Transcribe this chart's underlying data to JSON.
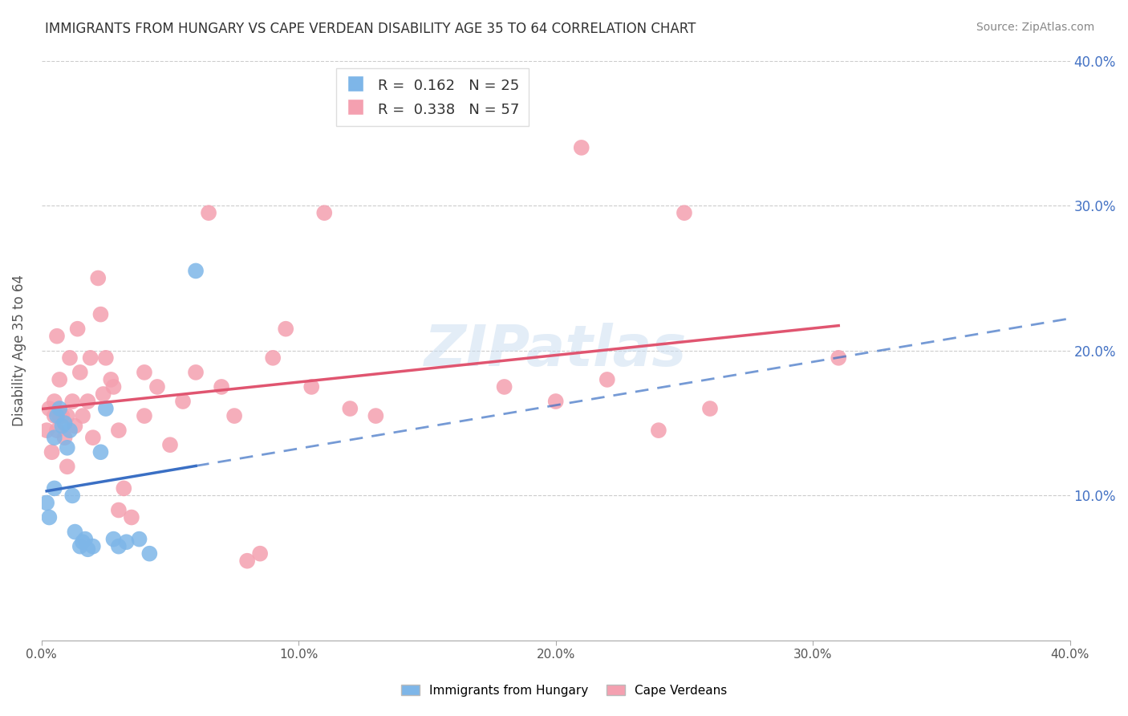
{
  "title": "IMMIGRANTS FROM HUNGARY VS CAPE VERDEAN DISABILITY AGE 35 TO 64 CORRELATION CHART",
  "source": "Source: ZipAtlas.com",
  "xlabel": "",
  "ylabel": "Disability Age 35 to 64",
  "xlim": [
    0.0,
    0.4
  ],
  "ylim": [
    0.0,
    0.4
  ],
  "xticks": [
    0.0,
    0.1,
    0.2,
    0.3,
    0.4
  ],
  "yticks": [
    0.1,
    0.2,
    0.3,
    0.4
  ],
  "ytick_labels_right": [
    "10.0%",
    "20.0%",
    "30.0%",
    "40.0%"
  ],
  "xtick_labels": [
    "0.0%",
    "10.0%",
    "20.0%",
    "30.0%",
    "40.0%"
  ],
  "hungary_color": "#7EB6E8",
  "cape_verde_color": "#F4A0B0",
  "hungary_line_color": "#3A6FC4",
  "cape_verde_line_color": "#E05570",
  "R_hungary": 0.162,
  "N_hungary": 25,
  "R_cape_verde": 0.338,
  "N_cape_verde": 57,
  "legend_label_1": "Immigrants from Hungary",
  "legend_label_2": "Cape Verdeans",
  "watermark": "ZIPatlas",
  "background_color": "#ffffff",
  "hungary_x": [
    0.002,
    0.003,
    0.005,
    0.005,
    0.006,
    0.007,
    0.008,
    0.009,
    0.01,
    0.011,
    0.012,
    0.013,
    0.015,
    0.016,
    0.017,
    0.018,
    0.02,
    0.023,
    0.025,
    0.028,
    0.03,
    0.033,
    0.038,
    0.042,
    0.06
  ],
  "hungary_y": [
    0.095,
    0.085,
    0.105,
    0.14,
    0.155,
    0.16,
    0.148,
    0.15,
    0.133,
    0.145,
    0.1,
    0.075,
    0.065,
    0.068,
    0.07,
    0.063,
    0.065,
    0.13,
    0.16,
    0.07,
    0.065,
    0.068,
    0.07,
    0.06,
    0.255
  ],
  "cape_verde_x": [
    0.002,
    0.003,
    0.004,
    0.005,
    0.005,
    0.006,
    0.006,
    0.007,
    0.007,
    0.008,
    0.009,
    0.01,
    0.01,
    0.011,
    0.012,
    0.013,
    0.014,
    0.015,
    0.016,
    0.018,
    0.019,
    0.02,
    0.022,
    0.023,
    0.024,
    0.025,
    0.027,
    0.028,
    0.03,
    0.03,
    0.032,
    0.035,
    0.04,
    0.04,
    0.045,
    0.05,
    0.055,
    0.06,
    0.065,
    0.07,
    0.075,
    0.08,
    0.085,
    0.09,
    0.095,
    0.105,
    0.11,
    0.12,
    0.13,
    0.18,
    0.2,
    0.21,
    0.22,
    0.24,
    0.25,
    0.26,
    0.31
  ],
  "cape_verde_y": [
    0.145,
    0.16,
    0.13,
    0.155,
    0.165,
    0.145,
    0.21,
    0.155,
    0.18,
    0.155,
    0.14,
    0.155,
    0.12,
    0.195,
    0.165,
    0.148,
    0.215,
    0.185,
    0.155,
    0.165,
    0.195,
    0.14,
    0.25,
    0.225,
    0.17,
    0.195,
    0.18,
    0.175,
    0.145,
    0.09,
    0.105,
    0.085,
    0.155,
    0.185,
    0.175,
    0.135,
    0.165,
    0.185,
    0.295,
    0.175,
    0.155,
    0.055,
    0.06,
    0.195,
    0.215,
    0.175,
    0.295,
    0.16,
    0.155,
    0.175,
    0.165,
    0.34,
    0.18,
    0.145,
    0.295,
    0.16,
    0.195
  ]
}
